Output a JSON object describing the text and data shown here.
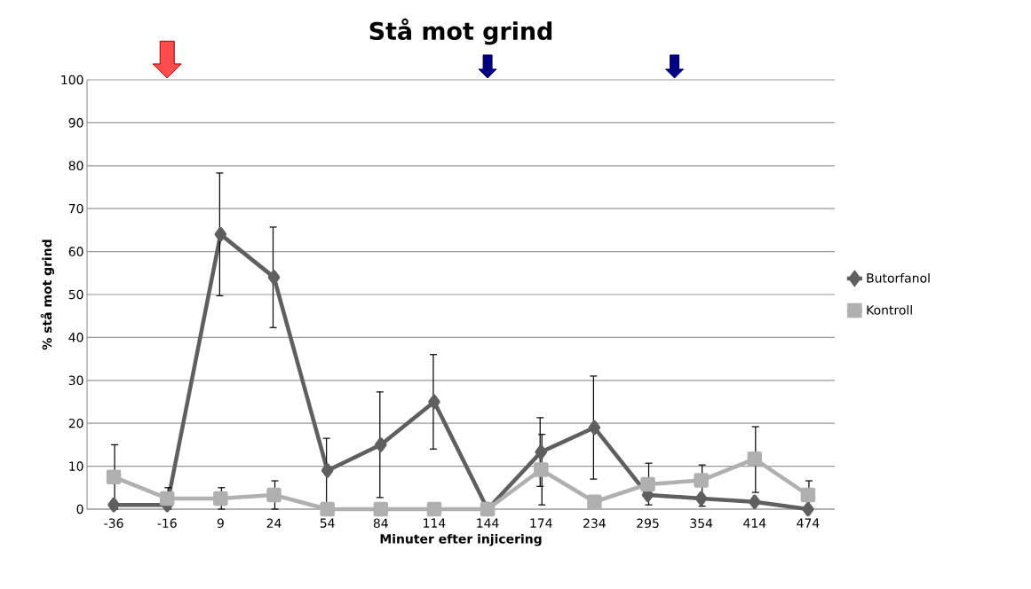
{
  "chart_data": {
    "type": "line",
    "title": "Stå mot grind",
    "xlabel": "Minuter efter injicering",
    "ylabel": "% stå mot grind",
    "categories": [
      "-36",
      "-16",
      "9",
      "24",
      "54",
      "84",
      "114",
      "144",
      "174",
      "234",
      "295",
      "354",
      "414",
      "474"
    ],
    "series": [
      {
        "name": "Butorfanol",
        "color": "#5f5f5f",
        "marker": "diamond",
        "values": [
          1,
          1,
          64,
          54,
          9,
          15,
          25,
          0,
          13.3,
          19,
          3.3,
          2.5,
          1.7,
          0
        ],
        "errors": [
          null,
          null,
          14.3,
          11.7,
          7.5,
          12.3,
          11,
          null,
          8,
          12,
          null,
          null,
          null,
          null
        ]
      },
      {
        "name": "Kontroll",
        "color": "#b0b0b0",
        "marker": "square",
        "values": [
          7.5,
          2.5,
          2.5,
          3.3,
          0,
          0,
          0,
          0,
          9.2,
          1.7,
          5.8,
          6.7,
          11.7,
          3.3
        ],
        "errors": [
          7.5,
          2.5,
          2.5,
          3.3,
          null,
          null,
          null,
          null,
          8.2,
          null,
          [
            1,
            10.7
          ],
          [
            0.7,
            10.3
          ],
          [
            3.9,
            19.2
          ],
          3.3
        ]
      }
    ],
    "ylim": [
      0,
      100
    ],
    "yticks": [
      0,
      10,
      20,
      30,
      40,
      50,
      60,
      70,
      80,
      90,
      100
    ],
    "grid": "y",
    "legend": "right",
    "line_style": "solid"
  }
}
